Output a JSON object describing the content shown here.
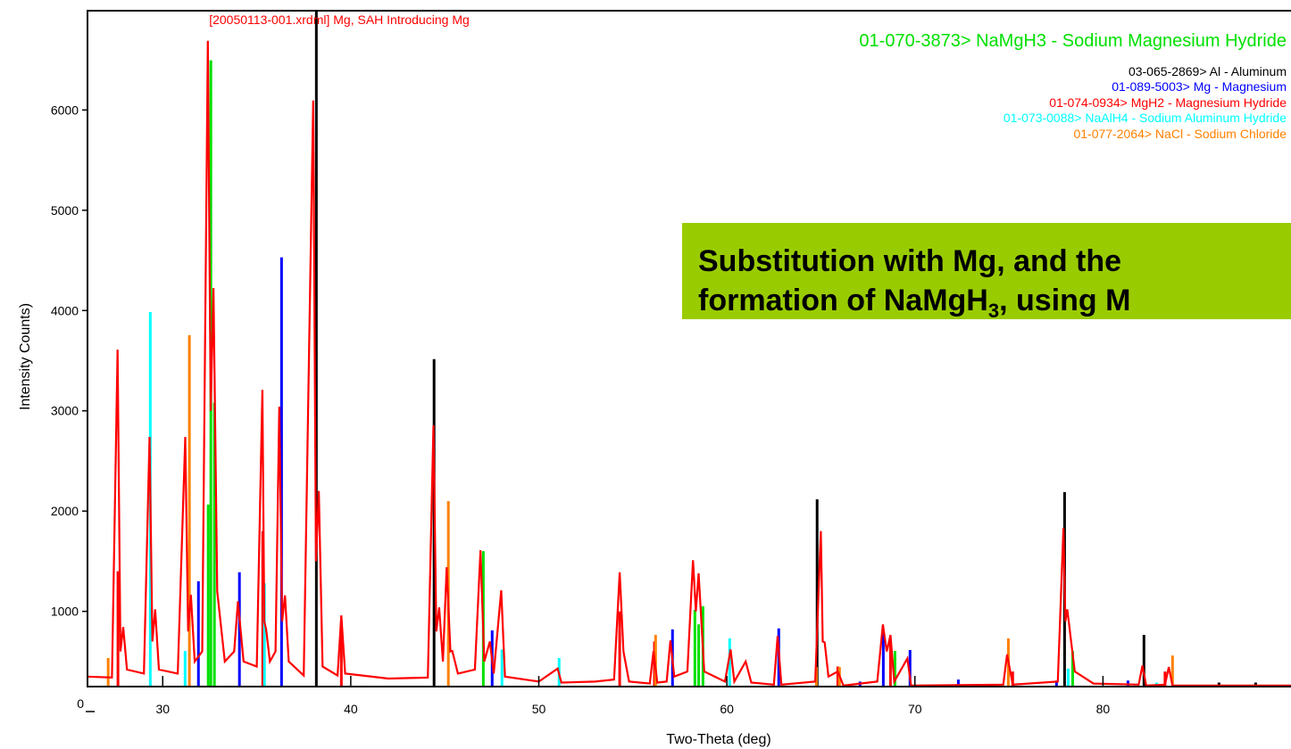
{
  "chart_data": {
    "type": "xrd",
    "xlabel": "Two-Theta (deg)",
    "ylabel": "Intensity Counts)",
    "xlim": [
      26,
      90
    ],
    "xticks": [
      30,
      40,
      50,
      60,
      70,
      80
    ],
    "ylim": [
      250,
      6990
    ],
    "yticks": [
      1000,
      2000,
      3000,
      4000,
      5000,
      6000
    ],
    "y_origin_label": "0",
    "annotation": {
      "parts": [
        "Substitution with Mg, and the",
        "formation of NaMgH",
        "3",
        ", using M"
      ],
      "color": "#99cc00"
    },
    "pattern": {
      "name": "[20050113-001.xrdml] Mg, SAH Introducing Mg",
      "color": "#ff0000",
      "x": [
        26.0,
        27.3,
        27.6,
        27.75,
        27.9,
        28.1,
        29.0,
        29.3,
        29.45,
        29.6,
        29.8,
        30.8,
        31.2,
        31.35,
        31.5,
        31.7,
        32.1,
        32.4,
        32.55,
        32.7,
        32.9,
        33.3,
        33.8,
        34.0,
        34.3,
        35.0,
        35.3,
        35.4,
        35.5,
        35.7,
        36.0,
        36.2,
        36.35,
        36.5,
        36.7,
        37.5,
        38.0,
        38.15,
        38.3,
        38.5,
        39.3,
        39.5,
        39.7,
        42.0,
        44.1,
        44.4,
        44.55,
        44.7,
        44.9,
        45.1,
        45.3,
        45.4,
        45.7,
        46.6,
        46.9,
        47.1,
        47.4,
        47.6,
        48.0,
        48.2,
        50.0,
        51.0,
        51.2,
        53.0,
        54.0,
        54.3,
        54.5,
        54.8,
        55.9,
        56.1,
        56.3,
        56.8,
        57.0,
        57.2,
        57.9,
        58.2,
        58.35,
        58.5,
        58.8,
        59.9,
        60.2,
        60.4,
        61.0,
        61.3,
        62.5,
        62.7,
        62.9,
        64.7,
        65.0,
        65.1,
        65.2,
        65.4,
        65.9,
        66.2,
        68.0,
        68.3,
        68.5,
        68.7,
        68.9,
        69.6,
        69.8,
        74.7,
        74.9,
        75.2,
        77.6,
        77.9,
        78.0,
        78.1,
        78.5,
        79.5,
        81.9,
        82.1,
        82.3,
        83.3,
        83.5,
        83.7,
        90.0
      ],
      "values": [
        350,
        340,
        3610,
        600,
        845,
        420,
        380,
        2740,
        700,
        1020,
        420,
        380,
        2740,
        800,
        1165,
        500,
        600,
        6690,
        3000,
        4225,
        1200,
        500,
        600,
        1100,
        500,
        450,
        3210,
        900,
        820,
        500,
        600,
        3040,
        900,
        1160,
        500,
        360,
        6095,
        1500,
        2200,
        450,
        360,
        960,
        380,
        330,
        340,
        2855,
        800,
        1040,
        500,
        1440,
        600,
        605,
        380,
        420,
        1610,
        500,
        700,
        380,
        1210,
        350,
        300,
        430,
        290,
        300,
        320,
        1390,
        600,
        300,
        280,
        605,
        290,
        300,
        710,
        350,
        400,
        1510,
        1000,
        1380,
        400,
        300,
        620,
        300,
        500,
        290,
        270,
        755,
        270,
        300,
        1800,
        700,
        690,
        350,
        400,
        260,
        300,
        870,
        600,
        765,
        300,
        530,
        260,
        270,
        570,
        270,
        300,
        1830,
        900,
        1020,
        400,
        280,
        270,
        460,
        260,
        270,
        445,
        260,
        260
      ]
    },
    "series": [
      {
        "name": "01-070-3873> NaMgH3 - Sodium Magnesium Hydride",
        "color": "#00e000",
        "x": [
          32.42,
          32.56,
          32.75,
          47.05,
          58.3,
          58.5,
          58.73,
          68.94,
          78.39
        ],
        "values": [
          2065,
          6495,
          3080,
          1600,
          1015,
          870,
          1050,
          605,
          605
        ]
      },
      {
        "name": "03-065-2869> Al - Aluminum",
        "color": "#000000",
        "x": [
          38.17,
          44.43,
          64.8,
          77.96,
          82.18,
          86.17,
          88.12
        ],
        "values": [
          6990,
          3515,
          2117,
          2190,
          765,
          290,
          290
        ]
      },
      {
        "name": "01-089-5003> Mg - Magnesium",
        "color": "#0000ff",
        "x": [
          31.9,
          34.08,
          36.32,
          47.52,
          57.11,
          62.76,
          67.08,
          68.32,
          69.74,
          72.31,
          77.53,
          81.33
        ],
        "values": [
          1300,
          1390,
          4530,
          810,
          820,
          830,
          300,
          810,
          615,
          320,
          310,
          310
        ]
      },
      {
        "name": "01-074-0934> MgH2 - Magnesium Hydride",
        "color": "#ff0000",
        "x": [
          27.62,
          35.32,
          39.5,
          54.3,
          56.15,
          65.9,
          68.7,
          75.2,
          83.3
        ],
        "values": [
          1400,
          1800,
          900,
          1000,
          700,
          450,
          700,
          400,
          400
        ]
      },
      {
        "name": "01-073-0088> NaAlH4 - Sodium Aluminum Hydride",
        "color": "#00ffff",
        "x": [
          29.34,
          31.19,
          35.41,
          48.04,
          51.08,
          60.15,
          78.15,
          82.85
        ],
        "values": [
          3985,
          605,
          1280,
          620,
          535,
          730,
          430,
          290
        ]
      },
      {
        "name": "01-077-2064> NaCl - Sodium Chloride",
        "color": "#ff8000",
        "x": [
          27.1,
          31.42,
          45.19,
          56.21,
          64.76,
          65.99,
          74.97,
          83.7
        ],
        "values": [
          535,
          3755,
          2100,
          765,
          445,
          445,
          730,
          560
        ]
      }
    ]
  }
}
